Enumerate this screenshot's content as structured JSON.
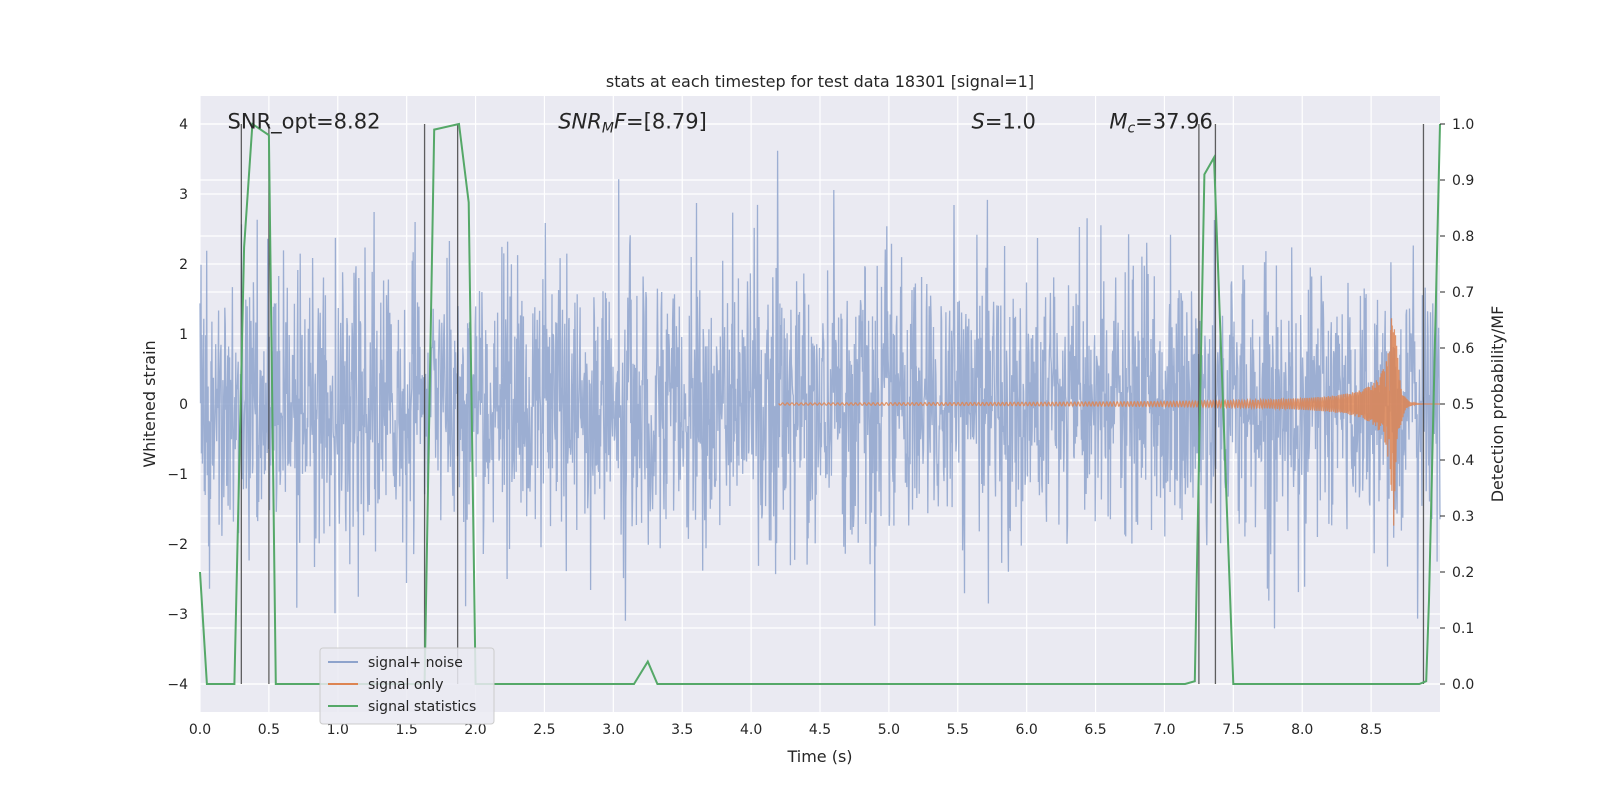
{
  "chart_data": {
    "type": "line",
    "title": "stats at each timestep for test data 18301 [signal=1]",
    "xlabel": "Time (s)",
    "ylabel": "Whitened strain",
    "ylabel_right": "Detection probability/MF",
    "xlim": [
      0,
      9.0
    ],
    "ylim": [
      -4.4,
      4.4
    ],
    "ylim_right": [
      -0.05,
      1.05
    ],
    "x_ticks": [
      "0.0",
      "0.5",
      "1.0",
      "1.5",
      "2.0",
      "2.5",
      "3.0",
      "3.5",
      "4.0",
      "4.5",
      "5.0",
      "5.5",
      "6.0",
      "6.5",
      "7.0",
      "7.5",
      "8.0",
      "8.5"
    ],
    "y_ticks": [
      "4",
      "3",
      "2",
      "1",
      "0",
      "−1",
      "−2",
      "−3",
      "−4"
    ],
    "y_ticks_right": [
      "1.0",
      "0.9",
      "0.8",
      "0.7",
      "0.6",
      "0.5",
      "0.4",
      "0.3",
      "0.2",
      "0.1",
      "0.0"
    ],
    "grid": true,
    "legend_position": "lower-left",
    "annotations": [
      {
        "text": "SNR_opt=8.82",
        "x": 0.2,
        "y": 4.05
      },
      {
        "text": "SNR_MF=[8.79]",
        "x": 2.6,
        "y": 4.05
      },
      {
        "text": "S=1.0",
        "x": 5.6,
        "y": 4.05
      },
      {
        "text": "M_c=37.96",
        "x": 6.6,
        "y": 4.05
      }
    ],
    "vertical_lines_x": [
      0.3,
      0.5,
      1.63,
      1.87,
      7.25,
      7.37,
      8.88
    ],
    "series": [
      {
        "name": "signal+ noise",
        "color": "#8ea3cc",
        "description_of_values": "whitened strain noise, approx. gaussian, amplitude within ±2 with spikes to ±3.8 across 0–9 s",
        "amplitude_envelope": 1.0,
        "peak_range": [
          -3.9,
          3.9
        ]
      },
      {
        "name": "signal only",
        "color": "#dd8452",
        "chirp_start": 4.2,
        "chirp_merger": 8.66,
        "peak_amplitude": 2.0
      },
      {
        "name": "signal statistics",
        "color": "#55a868",
        "axis": "right",
        "x": [
          0.0,
          0.05,
          0.25,
          0.32,
          0.38,
          0.5,
          0.55,
          1.55,
          1.63,
          1.7,
          1.88,
          1.95,
          2.0,
          3.15,
          3.25,
          3.32,
          7.15,
          7.22,
          7.29,
          7.36,
          7.5,
          7.55,
          8.85,
          8.9,
          8.92,
          9.0
        ],
        "values": [
          0.2,
          0.0,
          0.0,
          0.78,
          1.0,
          0.98,
          0.0,
          0.0,
          0.0,
          0.99,
          1.0,
          0.86,
          0.0,
          0.0,
          0.04,
          0.0,
          0.0,
          0.005,
          0.91,
          0.94,
          0.0,
          0.0,
          0.0,
          0.005,
          0.15,
          1.0
        ]
      }
    ]
  },
  "legend": {
    "items": [
      {
        "label": "signal+ noise",
        "color": "#8ea3cc"
      },
      {
        "label": "signal only",
        "color": "#dd8452"
      },
      {
        "label": "signal statistics",
        "color": "#55a868"
      }
    ]
  },
  "colors": {
    "plot_bg": "#eaeaf2",
    "grid": "#ffffff",
    "vline": "#3a3a3a"
  }
}
